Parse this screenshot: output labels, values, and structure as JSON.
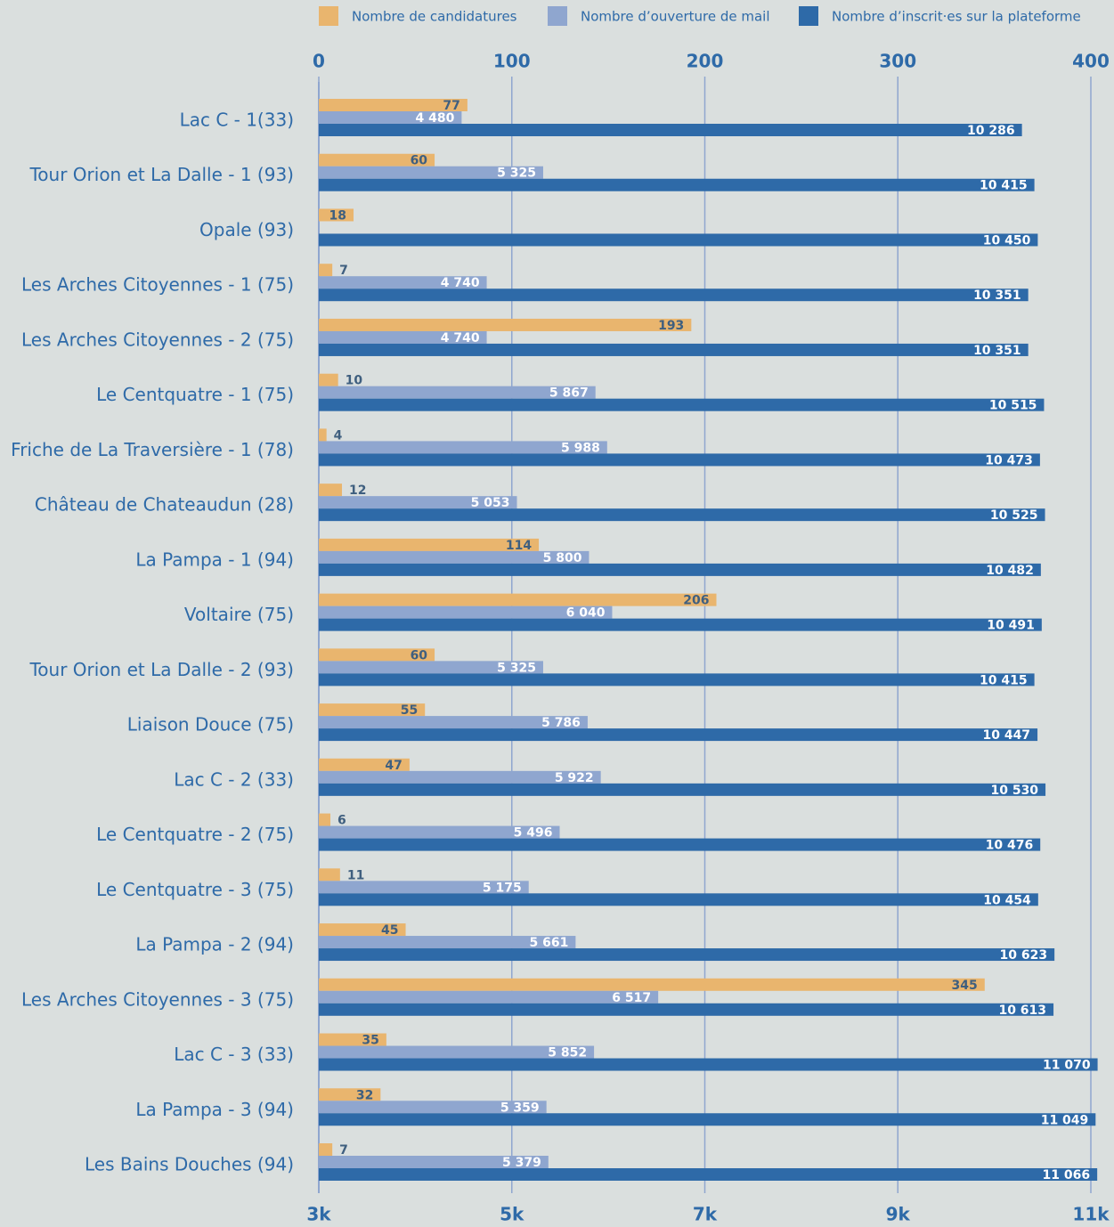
{
  "chart_data": {
    "type": "hbar",
    "categories": [
      "Lac C - 1(33)",
      "Tour Orion et La Dalle - 1 (93)",
      "Opale (93)",
      "Les Arches Citoyennes - 1 (75)",
      "Les Arches Citoyennes - 2 (75)",
      "Le Centquatre - 1 (75)",
      "Friche de La Traversière - 1 (78)",
      "Château de Chateaudun (28)",
      "La Pampa - 1 (94)",
      "Voltaire (75)",
      "Tour Orion et La Dalle - 2 (93)",
      "Liaison Douce (75)",
      "Lac C - 2 (33)",
      "Le Centquatre - 2 (75)",
      "Le Centquatre - 3 (75)",
      "La Pampa - 2 (94)",
      "Les Arches Citoyennes - 3 (75)",
      "Lac C - 3 (33)",
      "La Pampa - 3 (94)",
      "Les Bains Douches (94)"
    ],
    "series": [
      {
        "name": "Nombre de candidatures",
        "color": "#e9b56e",
        "axis": "x2",
        "values": [
          77,
          60,
          18,
          7,
          193,
          10,
          4,
          12,
          114,
          206,
          60,
          55,
          47,
          6,
          11,
          45,
          345,
          35,
          32,
          7
        ]
      },
      {
        "name": "Nombre d’ouverture de mail",
        "color": "#8fa6cf",
        "values": [
          4480,
          5325,
          null,
          4740,
          4740,
          5867,
          5988,
          5053,
          5800,
          6040,
          5325,
          5786,
          5922,
          5496,
          5175,
          5661,
          6517,
          5852,
          5359,
          5379
        ],
        "value_labels": [
          "4 480",
          "5 325",
          null,
          "4 740",
          "4 740",
          "5 867",
          "5 988",
          "5 053",
          "5 800",
          "6 040",
          "5 325",
          "5 786",
          "5 922",
          "5 496",
          "5 175",
          "5 661",
          "6 517",
          "5 852",
          "5 359",
          "5 379"
        ]
      },
      {
        "name": "Nombre d’inscrit·es sur la plateforme",
        "color": "#2e6aa8",
        "values": [
          10286,
          10415,
          10450,
          10351,
          10351,
          10515,
          10473,
          10525,
          10482,
          10491,
          10415,
          10447,
          10530,
          10476,
          10454,
          10623,
          10613,
          11070,
          11049,
          11066
        ],
        "value_labels": [
          "10 286",
          "10 415",
          "10 450",
          "10 351",
          "10 351",
          "10 515",
          "10 473",
          "10 525",
          "10 482",
          "10 491",
          "10 415",
          "10 447",
          "10 530",
          "10 476",
          "10 454",
          "10 623",
          "10 613",
          "11 070",
          "11 049",
          "11 066"
        ]
      }
    ],
    "xlim": [
      3000,
      11000
    ],
    "xticks": [
      {
        "value": 3000,
        "label": "3k"
      },
      {
        "value": 5000,
        "label": "5k"
      },
      {
        "value": 7000,
        "label": "7k"
      },
      {
        "value": 9000,
        "label": "9k"
      },
      {
        "value": 11000,
        "label": "11k"
      }
    ],
    "x2lim": [
      0,
      400
    ],
    "x2ticks": [
      0,
      100,
      200,
      300,
      400
    ],
    "grid": true,
    "legend": "top"
  }
}
